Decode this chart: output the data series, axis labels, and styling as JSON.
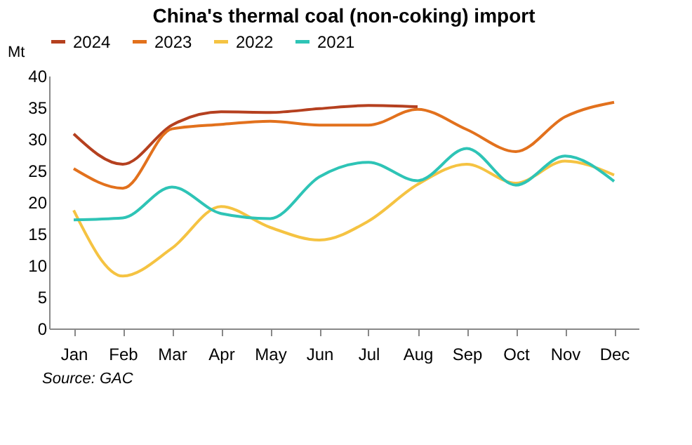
{
  "chart_data": {
    "type": "line",
    "title": "China's thermal coal (non-coking) import",
    "ylabel": "Mt",
    "categories": [
      "Jan",
      "Feb",
      "Mar",
      "Apr",
      "May",
      "Jun",
      "Jul",
      "Aug",
      "Sep",
      "Oct",
      "Nov",
      "Dec"
    ],
    "series": [
      {
        "name": "2024",
        "color": "#b5401f",
        "values": [
          30.8,
          26,
          32.2,
          34.3,
          34.2,
          34.8,
          35.3,
          35.1,
          null,
          null,
          null,
          null
        ]
      },
      {
        "name": "2023",
        "color": "#e2711d",
        "values": [
          25.3,
          22.2,
          31.6,
          32.3,
          32.8,
          32.2,
          32.2,
          34.7,
          31.5,
          28,
          33.5,
          35.8
        ]
      },
      {
        "name": "2022",
        "color": "#f5c342",
        "values": [
          18.7,
          8.3,
          12.7,
          19.3,
          16,
          14,
          17,
          22.8,
          26,
          23,
          26.5,
          24.3
        ]
      },
      {
        "name": "2021",
        "color": "#2ec4b6",
        "values": [
          17.2,
          17.5,
          22.4,
          18.2,
          17.4,
          24,
          26.3,
          23.4,
          28.5,
          22.7,
          27.3,
          23.3
        ]
      }
    ],
    "ylim": [
      0,
      40
    ],
    "yticks": [
      0,
      5,
      10,
      15,
      20,
      25,
      30,
      35,
      40
    ],
    "grid": false,
    "legend": "top",
    "marker": "none",
    "line_style": "solid",
    "annotations": [
      "Source: GAC"
    ]
  }
}
